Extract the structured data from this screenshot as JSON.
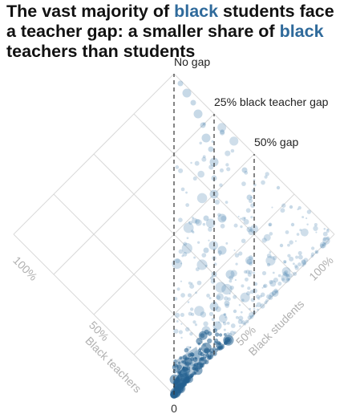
{
  "title": {
    "p1": "The vast majority of ",
    "hl1": "black",
    "p2": " students face a teacher gap: a smaller share of ",
    "hl2": "black",
    "p3": " teachers than students"
  },
  "colors": {
    "highlight": "#2f6a9b",
    "dot": "#5f93ba",
    "dense": "#24618f",
    "grid": "#d9d9d9"
  },
  "chart_data": {
    "type": "scatter",
    "x_axis": {
      "label": "Black teachers",
      "ticks": [
        "0",
        "50%",
        "100%"
      ]
    },
    "y_axis": {
      "label": "Black students",
      "ticks": [
        "0",
        "50%",
        "100%"
      ]
    },
    "range": [
      0,
      100
    ],
    "reference_lines": [
      {
        "label": "No gap",
        "gap": 0
      },
      {
        "label": "25% black teacher gap",
        "gap": 25
      },
      {
        "label": "50% gap",
        "gap": 50
      }
    ],
    "sample_points": [
      {
        "teachers": 1,
        "students": 5,
        "size": "large"
      },
      {
        "teachers": 3,
        "students": 10,
        "size": "large"
      },
      {
        "teachers": 5,
        "students": 20,
        "size": "large"
      },
      {
        "teachers": 10,
        "students": 30,
        "size": "large"
      },
      {
        "teachers": 8,
        "students": 35,
        "size": "large"
      },
      {
        "teachers": 15,
        "students": 40,
        "size": "large"
      },
      {
        "teachers": 20,
        "students": 55,
        "size": "large"
      },
      {
        "teachers": 30,
        "students": 60,
        "size": "large"
      },
      {
        "teachers": 40,
        "students": 70,
        "size": "large"
      },
      {
        "teachers": 50,
        "students": 75,
        "size": "large"
      },
      {
        "teachers": 60,
        "students": 85,
        "size": "large"
      },
      {
        "teachers": 70,
        "students": 90,
        "size": "large"
      },
      {
        "teachers": 80,
        "students": 95,
        "size": "large"
      },
      {
        "teachers": 90,
        "students": 98,
        "size": "large"
      },
      {
        "teachers": 25,
        "students": 50,
        "size": "medium"
      },
      {
        "teachers": 35,
        "students": 55,
        "size": "medium"
      },
      {
        "teachers": 45,
        "students": 65,
        "size": "medium"
      },
      {
        "teachers": 55,
        "students": 80,
        "size": "medium"
      },
      {
        "teachers": 65,
        "students": 88,
        "size": "medium"
      },
      {
        "teachers": 75,
        "students": 93,
        "size": "medium"
      },
      {
        "teachers": 85,
        "students": 97,
        "size": "medium"
      },
      {
        "teachers": 95,
        "students": 99,
        "size": "medium"
      },
      {
        "teachers": 12,
        "students": 45,
        "size": "medium"
      },
      {
        "teachers": 18,
        "students": 65,
        "size": "medium"
      },
      {
        "teachers": 28,
        "students": 75,
        "size": "medium"
      },
      {
        "teachers": 38,
        "students": 85,
        "size": "medium"
      },
      {
        "teachers": 48,
        "students": 92,
        "size": "medium"
      },
      {
        "teachers": 2,
        "students": 8,
        "size": "small"
      },
      {
        "teachers": 4,
        "students": 15,
        "size": "small"
      },
      {
        "teachers": 6,
        "students": 25,
        "size": "small"
      },
      {
        "teachers": 7,
        "students": 45,
        "size": "small"
      },
      {
        "teachers": 9,
        "students": 60,
        "size": "small"
      },
      {
        "teachers": 11,
        "students": 70,
        "size": "small"
      },
      {
        "teachers": 13,
        "students": 80,
        "size": "small"
      },
      {
        "teachers": 16,
        "students": 90,
        "size": "small"
      },
      {
        "teachers": 22,
        "students": 95,
        "size": "small"
      },
      {
        "teachers": 32,
        "students": 97,
        "size": "small"
      }
    ]
  }
}
